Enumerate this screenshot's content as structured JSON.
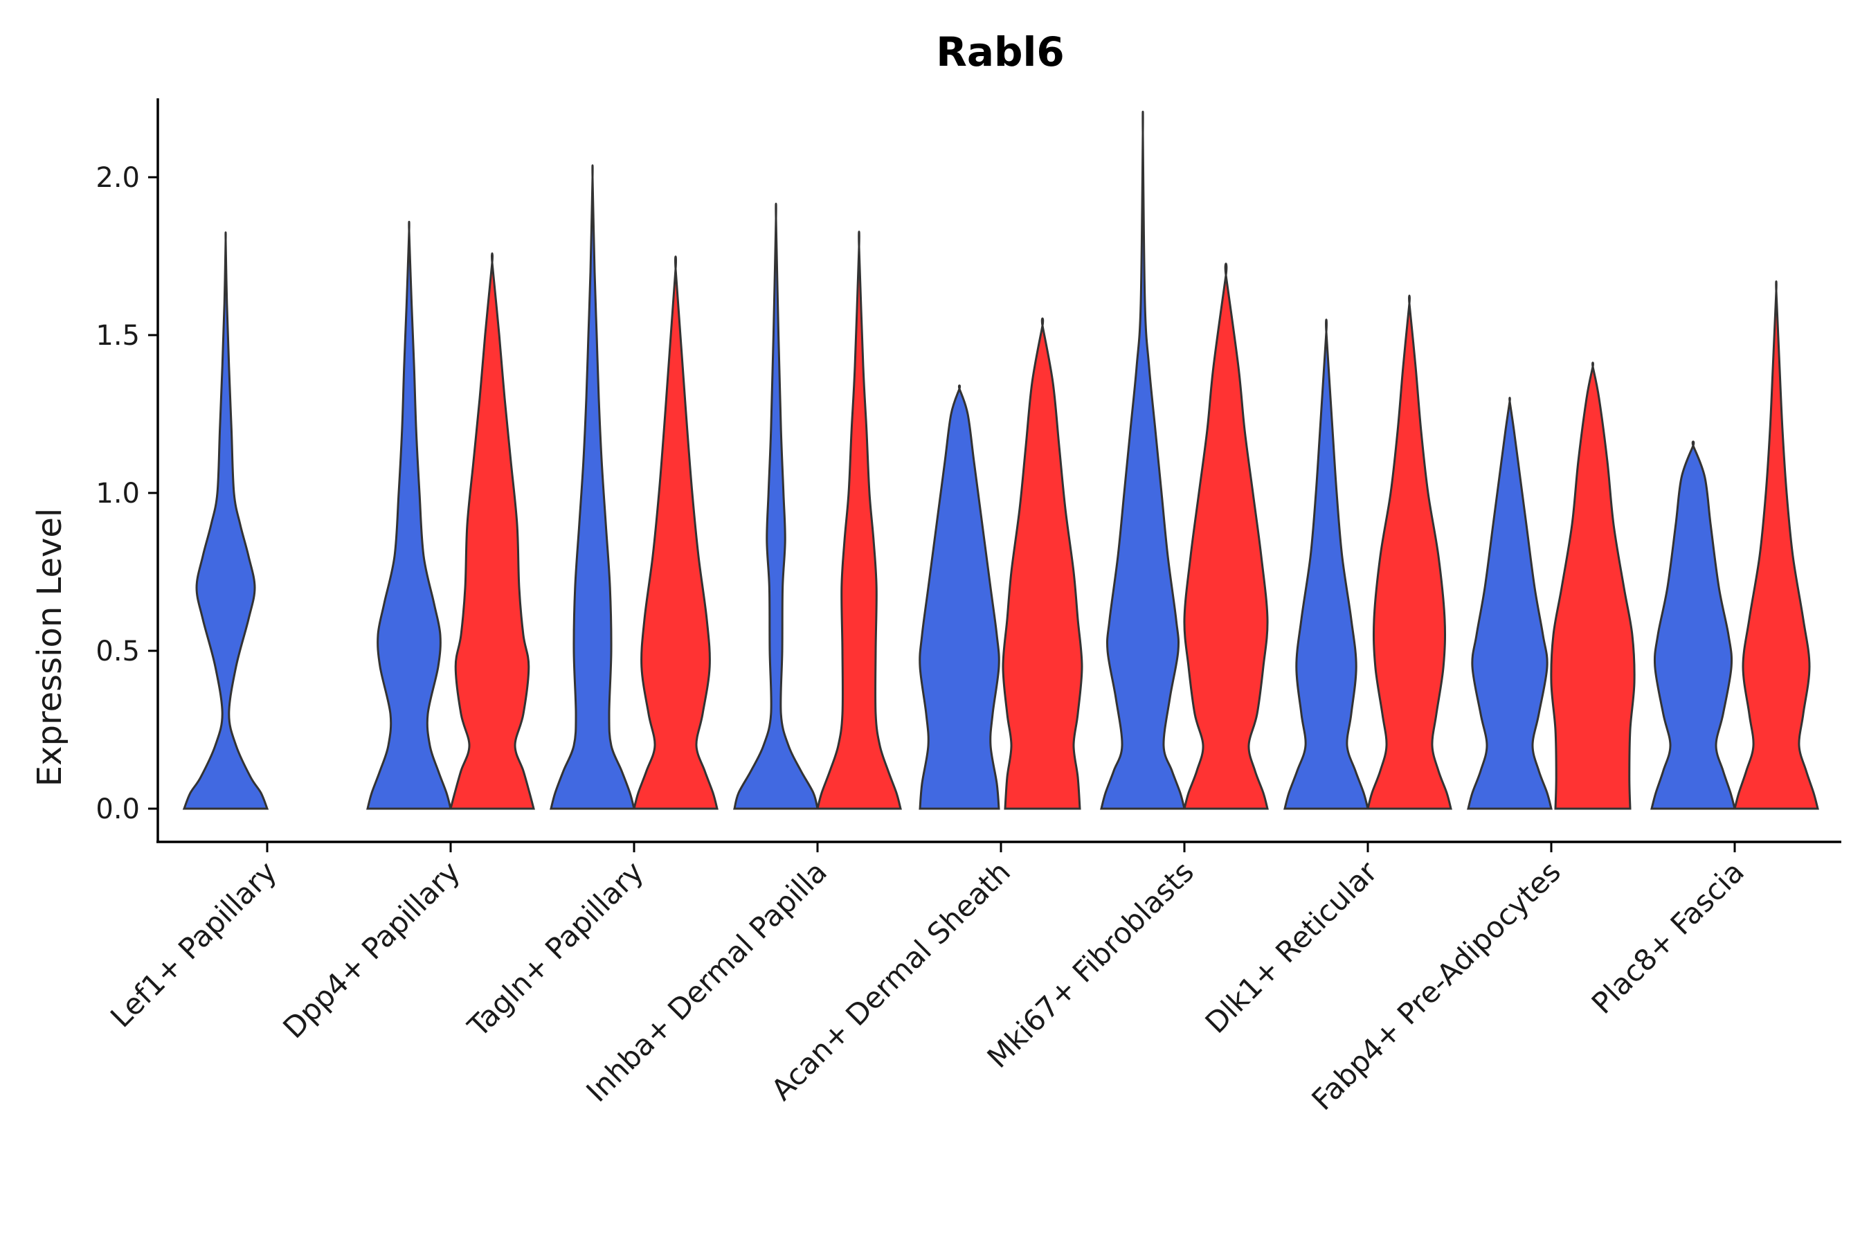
{
  "chart_data": {
    "type": "violin",
    "title": "Rabl6",
    "xlabel": "",
    "ylabel": "Expression Level",
    "ylim": [
      -0.11,
      2.25
    ],
    "yticks": [
      0.0,
      0.5,
      1.0,
      1.5,
      2.0
    ],
    "ytick_labels": [
      "0.0",
      "0.5",
      "1.0",
      "1.5",
      "2.0"
    ],
    "colors": {
      "blue": "#4169E1",
      "red": "#FF3333",
      "outline": "#333333"
    },
    "categories": [
      "Lef1+ Papillary",
      "Dpp4+ Papillary",
      "Tagln+ Papillary",
      "Inhba+ Dermal Papilla",
      "Acan+ Dermal Sheath",
      "Mki67+ Fibroblasts",
      "Dlk1+ Reticular",
      "Fabp4+ Pre-Adipocytes",
      "Plac8+ Fascia"
    ],
    "violins": [
      {
        "category": 0,
        "group": "blue",
        "max": 1.8,
        "profile": [
          [
            0,
            1
          ],
          [
            0.05,
            0.85
          ],
          [
            0.1,
            0.6
          ],
          [
            0.2,
            0.25
          ],
          [
            0.3,
            0.08
          ],
          [
            0.45,
            0.25
          ],
          [
            0.6,
            0.55
          ],
          [
            0.7,
            0.7
          ],
          [
            0.8,
            0.55
          ],
          [
            0.9,
            0.35
          ],
          [
            1.0,
            0.2
          ],
          [
            1.2,
            0.14
          ],
          [
            1.4,
            0.08
          ],
          [
            1.6,
            0.03
          ],
          [
            1.8,
            0
          ]
        ]
      },
      {
        "category": 1,
        "group": "blue",
        "max": 1.83,
        "profile": [
          [
            0,
            1
          ],
          [
            0.05,
            0.9
          ],
          [
            0.12,
            0.7
          ],
          [
            0.2,
            0.5
          ],
          [
            0.3,
            0.45
          ],
          [
            0.45,
            0.7
          ],
          [
            0.55,
            0.75
          ],
          [
            0.65,
            0.6
          ],
          [
            0.8,
            0.35
          ],
          [
            1.0,
            0.25
          ],
          [
            1.2,
            0.17
          ],
          [
            1.4,
            0.12
          ],
          [
            1.6,
            0.06
          ],
          [
            1.83,
            0
          ]
        ]
      },
      {
        "category": 1,
        "group": "red",
        "max": 1.73,
        "profile": [
          [
            0,
            1
          ],
          [
            0.05,
            0.9
          ],
          [
            0.12,
            0.75
          ],
          [
            0.2,
            0.55
          ],
          [
            0.3,
            0.75
          ],
          [
            0.45,
            0.88
          ],
          [
            0.55,
            0.75
          ],
          [
            0.7,
            0.65
          ],
          [
            0.9,
            0.6
          ],
          [
            1.1,
            0.45
          ],
          [
            1.3,
            0.3
          ],
          [
            1.5,
            0.17
          ],
          [
            1.73,
            0
          ]
        ]
      },
      {
        "category": 2,
        "group": "blue",
        "max": 2.0,
        "profile": [
          [
            0,
            1
          ],
          [
            0.05,
            0.9
          ],
          [
            0.12,
            0.7
          ],
          [
            0.2,
            0.45
          ],
          [
            0.3,
            0.4
          ],
          [
            0.5,
            0.45
          ],
          [
            0.7,
            0.42
          ],
          [
            0.9,
            0.32
          ],
          [
            1.1,
            0.22
          ],
          [
            1.3,
            0.15
          ],
          [
            1.5,
            0.1
          ],
          [
            1.7,
            0.05
          ],
          [
            2.0,
            0
          ]
        ]
      },
      {
        "category": 2,
        "group": "red",
        "max": 1.71,
        "profile": [
          [
            0,
            1
          ],
          [
            0.05,
            0.9
          ],
          [
            0.12,
            0.7
          ],
          [
            0.2,
            0.5
          ],
          [
            0.3,
            0.65
          ],
          [
            0.45,
            0.82
          ],
          [
            0.6,
            0.75
          ],
          [
            0.8,
            0.55
          ],
          [
            1.0,
            0.4
          ],
          [
            1.2,
            0.28
          ],
          [
            1.4,
            0.17
          ],
          [
            1.71,
            0
          ]
        ]
      },
      {
        "category": 3,
        "group": "blue",
        "max": 1.87,
        "profile": [
          [
            0,
            1
          ],
          [
            0.05,
            0.9
          ],
          [
            0.12,
            0.6
          ],
          [
            0.2,
            0.3
          ],
          [
            0.3,
            0.12
          ],
          [
            0.5,
            0.15
          ],
          [
            0.7,
            0.16
          ],
          [
            0.85,
            0.22
          ],
          [
            1.0,
            0.18
          ],
          [
            1.2,
            0.12
          ],
          [
            1.5,
            0.06
          ],
          [
            1.87,
            0
          ]
        ]
      },
      {
        "category": 3,
        "group": "red",
        "max": 1.78,
        "profile": [
          [
            0,
            1
          ],
          [
            0.05,
            0.9
          ],
          [
            0.12,
            0.7
          ],
          [
            0.2,
            0.5
          ],
          [
            0.3,
            0.4
          ],
          [
            0.5,
            0.4
          ],
          [
            0.7,
            0.42
          ],
          [
            0.85,
            0.35
          ],
          [
            1.0,
            0.25
          ],
          [
            1.2,
            0.18
          ],
          [
            1.4,
            0.1
          ],
          [
            1.78,
            0
          ]
        ]
      },
      {
        "category": 4,
        "group": "blue",
        "max": 1.33,
        "profile": [
          [
            0,
            0.95
          ],
          [
            0.08,
            0.9
          ],
          [
            0.2,
            0.75
          ],
          [
            0.3,
            0.8
          ],
          [
            0.45,
            0.95
          ],
          [
            0.55,
            0.9
          ],
          [
            0.7,
            0.75
          ],
          [
            0.9,
            0.55
          ],
          [
            1.1,
            0.35
          ],
          [
            1.25,
            0.2
          ],
          [
            1.33,
            0
          ]
        ]
      },
      {
        "category": 4,
        "group": "red",
        "max": 1.53,
        "profile": [
          [
            0,
            0.9
          ],
          [
            0.1,
            0.85
          ],
          [
            0.2,
            0.75
          ],
          [
            0.3,
            0.85
          ],
          [
            0.45,
            0.95
          ],
          [
            0.6,
            0.85
          ],
          [
            0.75,
            0.75
          ],
          [
            0.95,
            0.55
          ],
          [
            1.15,
            0.4
          ],
          [
            1.35,
            0.25
          ],
          [
            1.53,
            0
          ]
        ]
      },
      {
        "category": 5,
        "group": "blue",
        "max": 2.14,
        "profile": [
          [
            0,
            1
          ],
          [
            0.05,
            0.9
          ],
          [
            0.12,
            0.7
          ],
          [
            0.2,
            0.5
          ],
          [
            0.35,
            0.65
          ],
          [
            0.5,
            0.85
          ],
          [
            0.6,
            0.8
          ],
          [
            0.8,
            0.6
          ],
          [
            1.0,
            0.45
          ],
          [
            1.2,
            0.3
          ],
          [
            1.4,
            0.15
          ],
          [
            1.6,
            0.05
          ],
          [
            2.14,
            0
          ]
        ]
      },
      {
        "category": 5,
        "group": "red",
        "max": 1.69,
        "profile": [
          [
            0,
            1
          ],
          [
            0.05,
            0.9
          ],
          [
            0.12,
            0.7
          ],
          [
            0.2,
            0.55
          ],
          [
            0.3,
            0.75
          ],
          [
            0.45,
            0.9
          ],
          [
            0.6,
            1.0
          ],
          [
            0.8,
            0.85
          ],
          [
            1.0,
            0.65
          ],
          [
            1.2,
            0.45
          ],
          [
            1.4,
            0.3
          ],
          [
            1.69,
            0
          ]
        ]
      },
      {
        "category": 6,
        "group": "blue",
        "max": 1.51,
        "profile": [
          [
            0,
            1
          ],
          [
            0.05,
            0.9
          ],
          [
            0.12,
            0.7
          ],
          [
            0.2,
            0.5
          ],
          [
            0.3,
            0.6
          ],
          [
            0.45,
            0.72
          ],
          [
            0.6,
            0.6
          ],
          [
            0.8,
            0.38
          ],
          [
            1.0,
            0.25
          ],
          [
            1.2,
            0.15
          ],
          [
            1.51,
            0
          ]
        ]
      },
      {
        "category": 6,
        "group": "red",
        "max": 1.6,
        "profile": [
          [
            0,
            1
          ],
          [
            0.05,
            0.9
          ],
          [
            0.12,
            0.7
          ],
          [
            0.2,
            0.55
          ],
          [
            0.3,
            0.65
          ],
          [
            0.45,
            0.82
          ],
          [
            0.6,
            0.85
          ],
          [
            0.8,
            0.7
          ],
          [
            1.0,
            0.45
          ],
          [
            1.2,
            0.28
          ],
          [
            1.4,
            0.15
          ],
          [
            1.6,
            0
          ]
        ]
      },
      {
        "category": 7,
        "group": "blue",
        "max": 1.29,
        "profile": [
          [
            0,
            1
          ],
          [
            0.05,
            0.9
          ],
          [
            0.12,
            0.7
          ],
          [
            0.2,
            0.55
          ],
          [
            0.3,
            0.7
          ],
          [
            0.45,
            0.9
          ],
          [
            0.55,
            0.8
          ],
          [
            0.7,
            0.6
          ],
          [
            0.9,
            0.4
          ],
          [
            1.05,
            0.25
          ],
          [
            1.2,
            0.1
          ],
          [
            1.29,
            0
          ]
        ]
      },
      {
        "category": 7,
        "group": "red",
        "max": 1.4,
        "profile": [
          [
            0,
            0.9
          ],
          [
            0.1,
            0.88
          ],
          [
            0.25,
            0.9
          ],
          [
            0.4,
            1.0
          ],
          [
            0.55,
            0.95
          ],
          [
            0.7,
            0.75
          ],
          [
            0.9,
            0.5
          ],
          [
            1.1,
            0.35
          ],
          [
            1.3,
            0.15
          ],
          [
            1.4,
            0
          ]
        ]
      },
      {
        "category": 8,
        "group": "blue",
        "max": 1.15,
        "profile": [
          [
            0,
            1
          ],
          [
            0.05,
            0.9
          ],
          [
            0.12,
            0.72
          ],
          [
            0.2,
            0.55
          ],
          [
            0.3,
            0.72
          ],
          [
            0.45,
            0.92
          ],
          [
            0.55,
            0.85
          ],
          [
            0.7,
            0.62
          ],
          [
            0.9,
            0.42
          ],
          [
            1.05,
            0.28
          ],
          [
            1.15,
            0
          ]
        ]
      },
      {
        "category": 8,
        "group": "red",
        "max": 1.64,
        "profile": [
          [
            0,
            1
          ],
          [
            0.05,
            0.9
          ],
          [
            0.12,
            0.72
          ],
          [
            0.2,
            0.55
          ],
          [
            0.3,
            0.65
          ],
          [
            0.45,
            0.8
          ],
          [
            0.6,
            0.65
          ],
          [
            0.8,
            0.4
          ],
          [
            1.0,
            0.25
          ],
          [
            1.2,
            0.15
          ],
          [
            1.4,
            0.08
          ],
          [
            1.64,
            0
          ]
        ]
      }
    ]
  }
}
